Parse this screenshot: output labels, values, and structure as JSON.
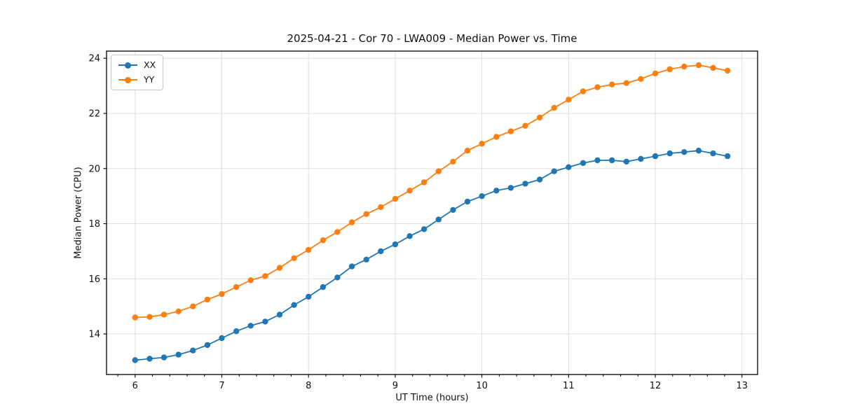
{
  "chart_data": {
    "type": "line",
    "title": "2025-04-21 - Cor 70 - LWA009 - Median Power vs. Time",
    "xlabel": "UT Time (hours)",
    "ylabel": "Median Power (CPU)",
    "xlim": [
      5.67,
      13.18
    ],
    "ylim": [
      12.53,
      24.26
    ],
    "x_ticks": [
      6,
      7,
      8,
      9,
      10,
      11,
      12,
      13
    ],
    "x_minor_tick_step": 0.2,
    "y_ticks": [
      14,
      16,
      18,
      20,
      22,
      24
    ],
    "grid": true,
    "grid_color": "#dddddd",
    "legend_position": "upper-left",
    "background_color": "#ffffff",
    "x": [
      6.0,
      6.167,
      6.333,
      6.5,
      6.667,
      6.833,
      7.0,
      7.167,
      7.333,
      7.5,
      7.667,
      7.833,
      8.0,
      8.167,
      8.333,
      8.5,
      8.667,
      8.833,
      9.0,
      9.167,
      9.333,
      9.5,
      9.667,
      9.833,
      10.0,
      10.167,
      10.333,
      10.5,
      10.667,
      10.833,
      11.0,
      11.167,
      11.333,
      11.5,
      11.667,
      11.833,
      12.0,
      12.167,
      12.333,
      12.5,
      12.667,
      12.833
    ],
    "series": [
      {
        "name": "XX",
        "color": "#1f77b4",
        "values": [
          13.05,
          13.1,
          13.15,
          13.25,
          13.4,
          13.6,
          13.85,
          14.1,
          14.3,
          14.45,
          14.7,
          15.05,
          15.35,
          15.7,
          16.05,
          16.45,
          16.7,
          17.0,
          17.25,
          17.55,
          17.8,
          18.15,
          18.5,
          18.8,
          19.0,
          19.2,
          19.3,
          19.45,
          19.6,
          19.9,
          20.05,
          20.2,
          20.3,
          20.3,
          20.25,
          20.35,
          20.45,
          20.55,
          20.6,
          20.65,
          20.55,
          20.45
        ]
      },
      {
        "name": "YY",
        "color": "#ff7f0e",
        "values": [
          14.6,
          14.62,
          14.7,
          14.82,
          15.0,
          15.25,
          15.45,
          15.7,
          15.95,
          16.1,
          16.4,
          16.75,
          17.05,
          17.4,
          17.7,
          18.05,
          18.35,
          18.6,
          18.9,
          19.2,
          19.5,
          19.9,
          20.25,
          20.65,
          20.9,
          21.15,
          21.35,
          21.55,
          21.85,
          22.2,
          22.5,
          22.8,
          22.95,
          23.05,
          23.1,
          23.25,
          23.45,
          23.6,
          23.7,
          23.75,
          23.65,
          23.55
        ]
      }
    ]
  }
}
